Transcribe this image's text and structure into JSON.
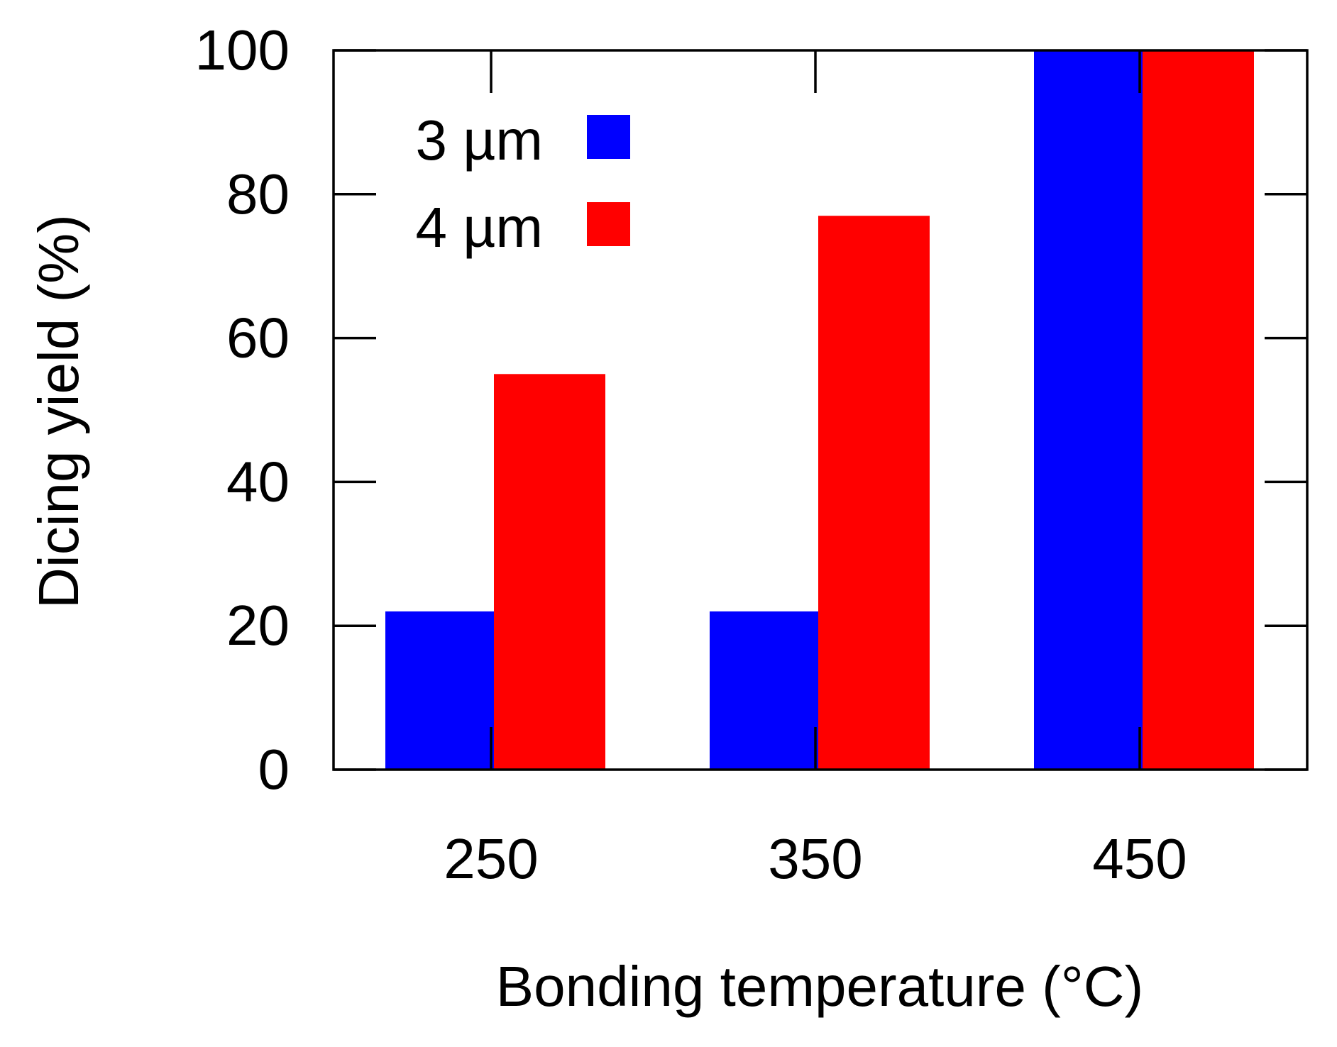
{
  "chart_data": {
    "type": "bar",
    "title": "",
    "xlabel": "Bonding temperature (°C)",
    "ylabel": "Dicing yield (%)",
    "categories": [
      "250",
      "350",
      "450"
    ],
    "series": [
      {
        "name": "3 µm",
        "color": "#0000ff",
        "values": [
          22,
          22,
          100
        ]
      },
      {
        "name": "4 µm",
        "color": "#ff0000",
        "values": [
          55,
          77,
          100
        ]
      }
    ],
    "ylim": [
      0,
      100
    ],
    "yticks": [
      0,
      20,
      40,
      60,
      80,
      100
    ],
    "grid": false,
    "legend_position": "top-left"
  }
}
